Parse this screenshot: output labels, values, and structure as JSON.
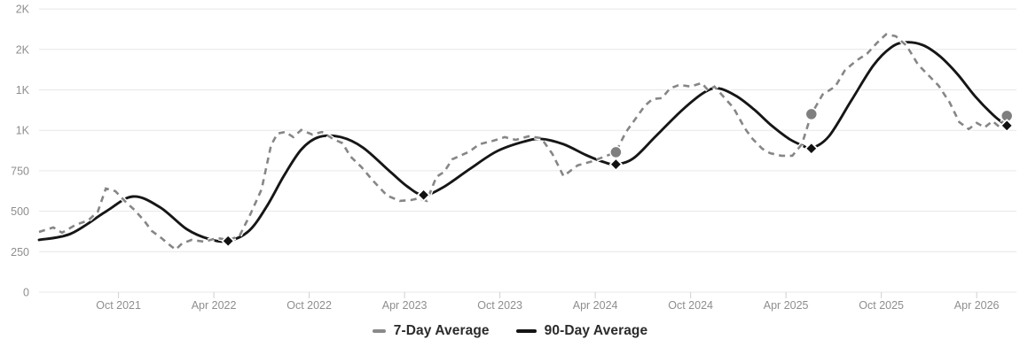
{
  "chart_data": {
    "type": "line",
    "title": "",
    "xlabel": "",
    "ylabel": "",
    "grid": "horizontal",
    "legend_position": "bottom-center",
    "x_axis": {
      "unit": "months since May 2021",
      "range": [
        0,
        61
      ],
      "ticks": [
        {
          "m": 5,
          "label": "Oct 2021"
        },
        {
          "m": 11,
          "label": "Apr 2022"
        },
        {
          "m": 17,
          "label": "Oct 2022"
        },
        {
          "m": 23,
          "label": "Apr 2023"
        },
        {
          "m": 29,
          "label": "Oct 2023"
        },
        {
          "m": 35,
          "label": "Apr 2024"
        },
        {
          "m": 41,
          "label": "Oct 2024"
        },
        {
          "m": 47,
          "label": "Apr 2025"
        },
        {
          "m": 53,
          "label": "Oct 2025"
        },
        {
          "m": 59,
          "label": "Apr 2026"
        }
      ]
    },
    "y_axis": {
      "min": 0,
      "max": 1750,
      "step": 250,
      "ticks": [
        {
          "v": 0,
          "label": "0"
        },
        {
          "v": 250,
          "label": "250"
        },
        {
          "v": 500,
          "label": "500"
        },
        {
          "v": 750,
          "label": "750"
        },
        {
          "v": 1000,
          "label": "1K"
        },
        {
          "v": 1250,
          "label": "1K"
        },
        {
          "v": 1500,
          "label": "2K"
        },
        {
          "v": 1750,
          "label": "2K"
        }
      ]
    },
    "series": [
      {
        "name": "7-Day Average",
        "style": "dashed",
        "color": "#868686",
        "points": [
          [
            0,
            372
          ],
          [
            0.9,
            400
          ],
          [
            1.45,
            367
          ],
          [
            2.3,
            416
          ],
          [
            3.1,
            443
          ],
          [
            3.7,
            498
          ],
          [
            4.2,
            640
          ],
          [
            4.8,
            624
          ],
          [
            5.5,
            553
          ],
          [
            6,
            509
          ],
          [
            6.6,
            443
          ],
          [
            7.1,
            378
          ],
          [
            7.7,
            334
          ],
          [
            8.3,
            285
          ],
          [
            8.6,
            263
          ],
          [
            9,
            301
          ],
          [
            9.6,
            323
          ],
          [
            10.4,
            312
          ],
          [
            11.2,
            334
          ],
          [
            11.9,
            323
          ],
          [
            12.6,
            345
          ],
          [
            13.3,
            482
          ],
          [
            14,
            635
          ],
          [
            14.6,
            908
          ],
          [
            15,
            980
          ],
          [
            15.5,
            990
          ],
          [
            16,
            958
          ],
          [
            16.5,
            1002
          ],
          [
            17.2,
            974
          ],
          [
            17.8,
            990
          ],
          [
            18.5,
            947
          ],
          [
            19.1,
            920
          ],
          [
            19.6,
            838
          ],
          [
            20.3,
            772
          ],
          [
            21,
            690
          ],
          [
            21.9,
            597
          ],
          [
            22.7,
            564
          ],
          [
            23.4,
            569
          ],
          [
            23.9,
            580
          ],
          [
            24.4,
            564
          ],
          [
            25,
            712
          ],
          [
            25.5,
            744
          ],
          [
            26,
            821
          ],
          [
            26.5,
            843
          ],
          [
            27.1,
            870
          ],
          [
            27.7,
            914
          ],
          [
            28.6,
            936
          ],
          [
            29.3,
            958
          ],
          [
            30,
            941
          ],
          [
            30.8,
            963
          ],
          [
            31.6,
            952
          ],
          [
            32.3,
            854
          ],
          [
            33,
            717
          ],
          [
            33.9,
            784
          ],
          [
            34.7,
            805
          ],
          [
            35.6,
            838
          ],
          [
            36.3,
            865
          ],
          [
            36.9,
            985
          ],
          [
            37.5,
            1067
          ],
          [
            38.1,
            1150
          ],
          [
            38.6,
            1193
          ],
          [
            39.2,
            1199
          ],
          [
            39.7,
            1259
          ],
          [
            40.3,
            1281
          ],
          [
            41,
            1270
          ],
          [
            41.7,
            1292
          ],
          [
            42.1,
            1248
          ],
          [
            42.5,
            1270
          ],
          [
            43.1,
            1204
          ],
          [
            43.7,
            1139
          ],
          [
            44.4,
            1013
          ],
          [
            44.9,
            947
          ],
          [
            45.5,
            887
          ],
          [
            46,
            859
          ],
          [
            46.7,
            843
          ],
          [
            47.4,
            843
          ],
          [
            48,
            914
          ],
          [
            48.6,
            1100
          ],
          [
            49.3,
            1221
          ],
          [
            50.1,
            1270
          ],
          [
            50.7,
            1369
          ],
          [
            51.4,
            1429
          ],
          [
            52.1,
            1473
          ],
          [
            52.7,
            1538
          ],
          [
            53.3,
            1593
          ],
          [
            53.9,
            1582
          ],
          [
            54.6,
            1522
          ],
          [
            55.3,
            1407
          ],
          [
            55.9,
            1347
          ],
          [
            56.6,
            1276
          ],
          [
            57.3,
            1172
          ],
          [
            57.9,
            1051
          ],
          [
            58.5,
            1007
          ],
          [
            59,
            1046
          ],
          [
            59.5,
            1018
          ],
          [
            60,
            1057
          ],
          [
            60.4,
            1024
          ],
          [
            60.9,
            1089
          ]
        ],
        "markers": {
          "shape": "circle",
          "color": "#7f7f7f",
          "points": [
            [
              36.3,
              865
            ],
            [
              48.6,
              1100
            ],
            [
              60.9,
              1089
            ]
          ]
        }
      },
      {
        "name": "90-Day Average",
        "style": "solid",
        "color": "#161616",
        "points": [
          [
            0,
            323
          ],
          [
            2,
            361
          ],
          [
            4.2,
            498
          ],
          [
            5.9,
            591
          ],
          [
            7.6,
            525
          ],
          [
            9.3,
            389
          ],
          [
            10.7,
            328
          ],
          [
            11.9,
            316
          ],
          [
            13.2,
            378
          ],
          [
            14.3,
            525
          ],
          [
            15.4,
            717
          ],
          [
            16.5,
            881
          ],
          [
            17.6,
            958
          ],
          [
            19,
            958
          ],
          [
            20.4,
            892
          ],
          [
            22.1,
            744
          ],
          [
            23.2,
            651
          ],
          [
            24.2,
            600
          ],
          [
            25.4,
            646
          ],
          [
            27.1,
            761
          ],
          [
            28.8,
            870
          ],
          [
            30.5,
            930
          ],
          [
            31.6,
            947
          ],
          [
            33,
            914
          ],
          [
            34.4,
            848
          ],
          [
            35.5,
            805
          ],
          [
            36.3,
            790
          ],
          [
            37.4,
            827
          ],
          [
            38.8,
            963
          ],
          [
            40.5,
            1128
          ],
          [
            41.9,
            1237
          ],
          [
            42.8,
            1259
          ],
          [
            43.9,
            1210
          ],
          [
            45,
            1128
          ],
          [
            46.1,
            1029
          ],
          [
            47.2,
            947
          ],
          [
            48.1,
            903
          ],
          [
            48.6,
            888
          ],
          [
            49.7,
            963
          ],
          [
            51.1,
            1182
          ],
          [
            52.5,
            1401
          ],
          [
            53.6,
            1511
          ],
          [
            54.5,
            1544
          ],
          [
            55.6,
            1527
          ],
          [
            56.7,
            1456
          ],
          [
            57.8,
            1346
          ],
          [
            58.9,
            1210
          ],
          [
            60.1,
            1089
          ],
          [
            60.9,
            1029
          ]
        ],
        "markers": {
          "shape": "diamond",
          "color": "#111111",
          "points": [
            [
              11.9,
              316
            ],
            [
              24.2,
              600
            ],
            [
              36.3,
              790
            ],
            [
              48.6,
              888
            ],
            [
              60.9,
              1029
            ]
          ]
        }
      }
    ]
  },
  "legend": {
    "items": [
      {
        "label": "7-Day Average"
      },
      {
        "label": "90-Day Average"
      }
    ]
  },
  "colors": {
    "background": "#ffffff",
    "gridline": "#e7e7e7",
    "axis_text": "#8e8e8e",
    "tick_mark": "#d0d0d0",
    "dashed_series": "#868686",
    "solid_series": "#161616",
    "circle_marker": "#7f7f7f",
    "diamond_marker": "#111111",
    "legend_text": "#2b2b2b"
  }
}
